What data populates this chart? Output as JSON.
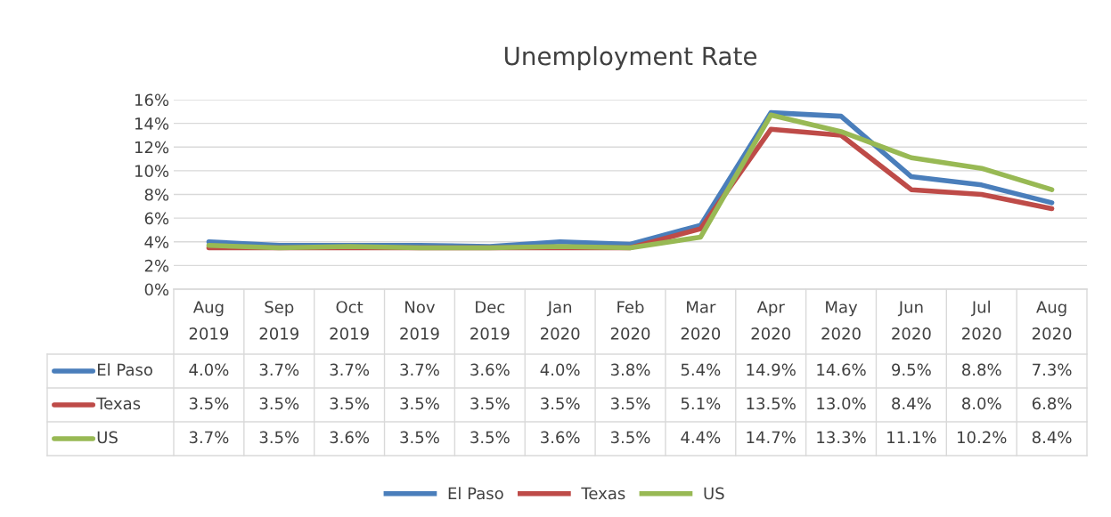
{
  "chart_data": {
    "type": "line",
    "title": "Unemployment Rate",
    "categories": [
      "Aug\n2019",
      "Sep\n2019",
      "Oct\n2019",
      "Nov\n2019",
      "Dec\n2019",
      "Jan\n2020",
      "Feb\n2020",
      "Mar\n2020",
      "Apr\n2020",
      "May\n2020",
      "Jun\n2020",
      "Jul\n2020",
      "Aug\n2020"
    ],
    "series": [
      {
        "name": "El Paso",
        "color": "#4a7ebb",
        "values": [
          4.0,
          3.7,
          3.7,
          3.7,
          3.6,
          4.0,
          3.8,
          5.4,
          14.9,
          14.6,
          9.5,
          8.8,
          7.3
        ],
        "value_labels": [
          "4.0%",
          "3.7%",
          "3.7%",
          "3.7%",
          "3.6%",
          "4.0%",
          "3.8%",
          "5.4%",
          "14.9%",
          "14.6%",
          "9.5%",
          "8.8%",
          "7.3%"
        ]
      },
      {
        "name": "Texas",
        "color": "#be4b48",
        "values": [
          3.5,
          3.5,
          3.5,
          3.5,
          3.5,
          3.5,
          3.5,
          5.1,
          13.5,
          13.0,
          8.4,
          8.0,
          6.8
        ],
        "value_labels": [
          "3.5%",
          "3.5%",
          "3.5%",
          "3.5%",
          "3.5%",
          "3.5%",
          "3.5%",
          "5.1%",
          "13.5%",
          "13.0%",
          "8.4%",
          "8.0%",
          "6.8%"
        ]
      },
      {
        "name": "US",
        "color": "#98b954",
        "values": [
          3.7,
          3.5,
          3.6,
          3.5,
          3.5,
          3.6,
          3.5,
          4.4,
          14.7,
          13.3,
          11.1,
          10.2,
          8.4
        ],
        "value_labels": [
          "3.7%",
          "3.5%",
          "3.6%",
          "3.5%",
          "3.5%",
          "3.6%",
          "3.5%",
          "4.4%",
          "14.7%",
          "13.3%",
          "11.1%",
          "10.2%",
          "8.4%"
        ]
      }
    ],
    "ylim": [
      0,
      16
    ],
    "yticks": [
      {
        "value": 0,
        "label": "0%"
      },
      {
        "value": 2,
        "label": "2%"
      },
      {
        "value": 4,
        "label": "4%"
      },
      {
        "value": 6,
        "label": "6%"
      },
      {
        "value": 8,
        "label": "8%"
      },
      {
        "value": 10,
        "label": "10%"
      },
      {
        "value": 12,
        "label": "12%"
      },
      {
        "value": 14,
        "label": "14%"
      },
      {
        "value": 16,
        "label": "16%"
      }
    ],
    "grid": "y",
    "legend": "bottom",
    "marker": "none",
    "line_style": "solid"
  }
}
